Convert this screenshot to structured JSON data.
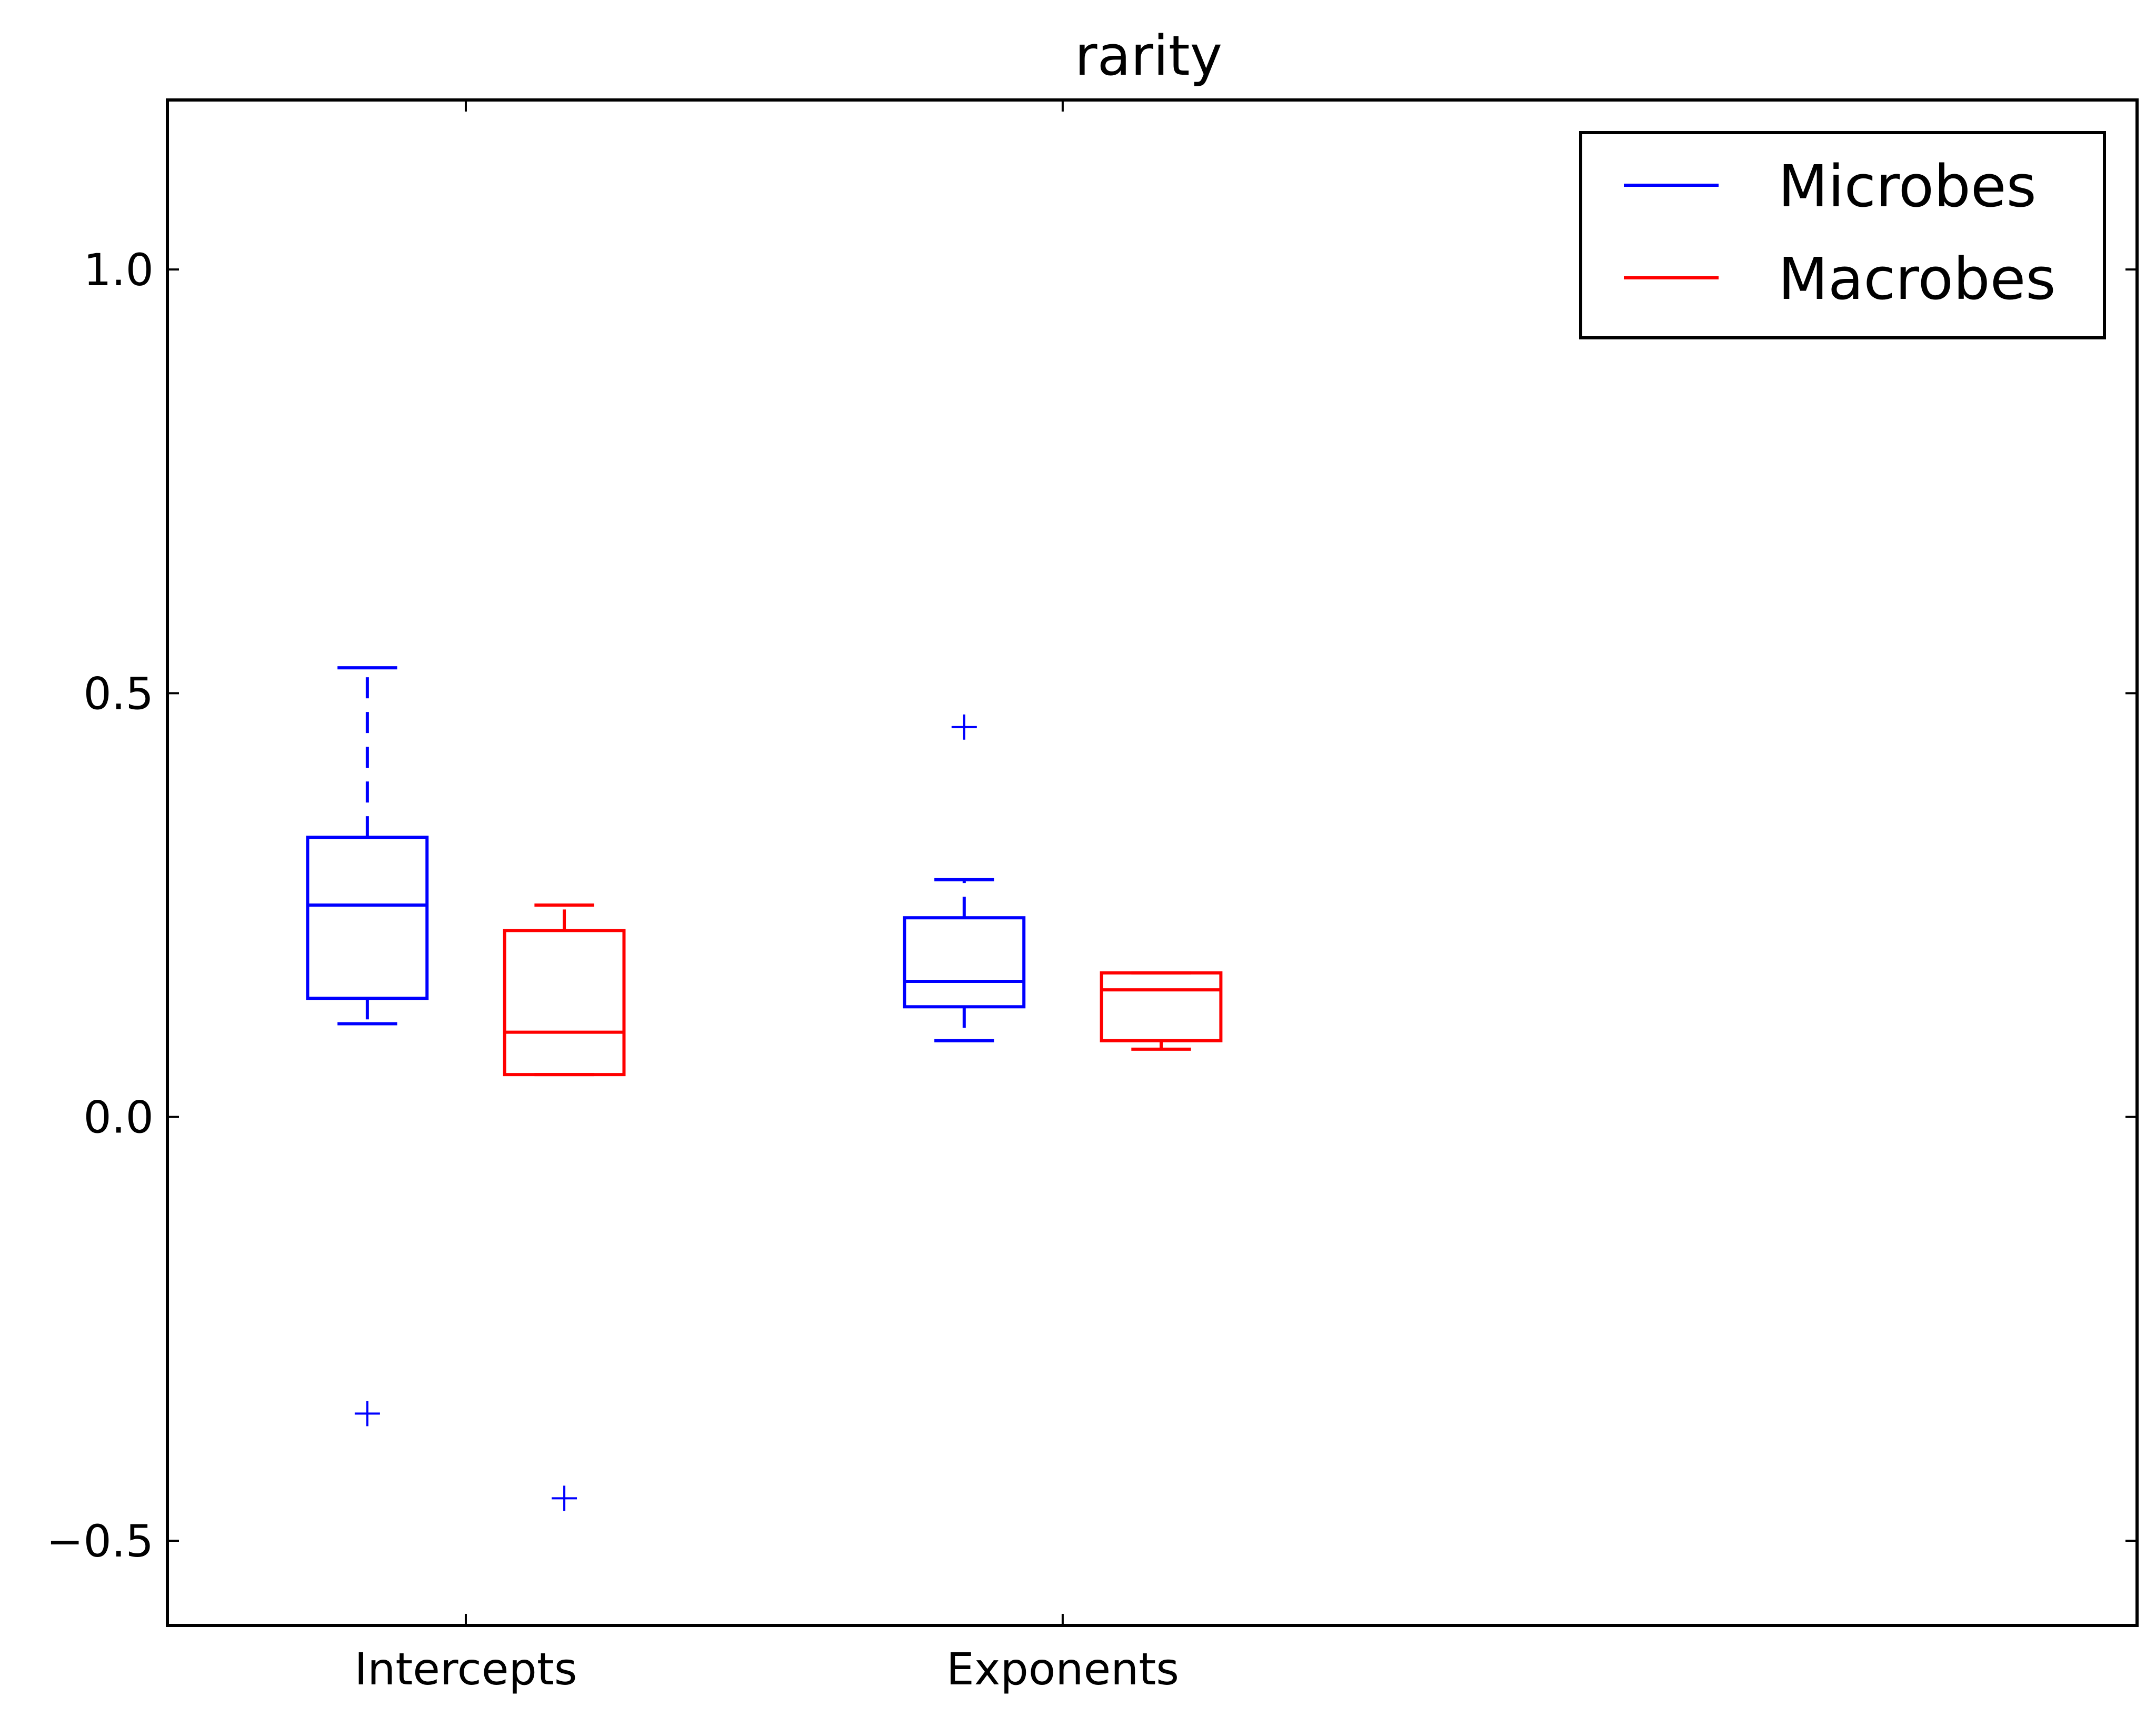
{
  "chart_data": {
    "type": "boxplot",
    "title": "rarity",
    "xlabel": "",
    "ylabel": "",
    "categories": [
      "Intercepts",
      "Exponents"
    ],
    "ylim": [
      -0.6,
      1.2
    ],
    "yticks": [
      -0.5,
      0.0,
      0.5,
      1.0
    ],
    "ytick_labels": [
      "−0.5",
      "0.0",
      "0.5",
      "1.0"
    ],
    "grid": false,
    "legend_position": "top-right",
    "series": [
      {
        "name": "Microbes",
        "color": "#0000ff",
        "boxes": [
          {
            "category": "Intercepts",
            "whisker_low": 0.11,
            "q1": 0.14,
            "median": 0.25,
            "q3": 0.33,
            "whisker_high": 0.53,
            "outliers": [
              -0.35
            ]
          },
          {
            "category": "Exponents",
            "whisker_low": 0.09,
            "q1": 0.13,
            "median": 0.16,
            "q3": 0.235,
            "whisker_high": 0.28,
            "outliers": [
              0.46
            ]
          }
        ]
      },
      {
        "name": "Macrobes",
        "color": "#ff0000",
        "boxes": [
          {
            "category": "Intercepts",
            "whisker_low": 0.05,
            "q1": 0.05,
            "median": 0.1,
            "q3": 0.22,
            "whisker_high": 0.25,
            "outliers": [
              -0.45
            ]
          },
          {
            "category": "Exponents",
            "whisker_low": 0.08,
            "q1": 0.09,
            "median": 0.15,
            "q3": 0.17,
            "whisker_high": 0.17,
            "outliers": []
          }
        ]
      }
    ]
  }
}
